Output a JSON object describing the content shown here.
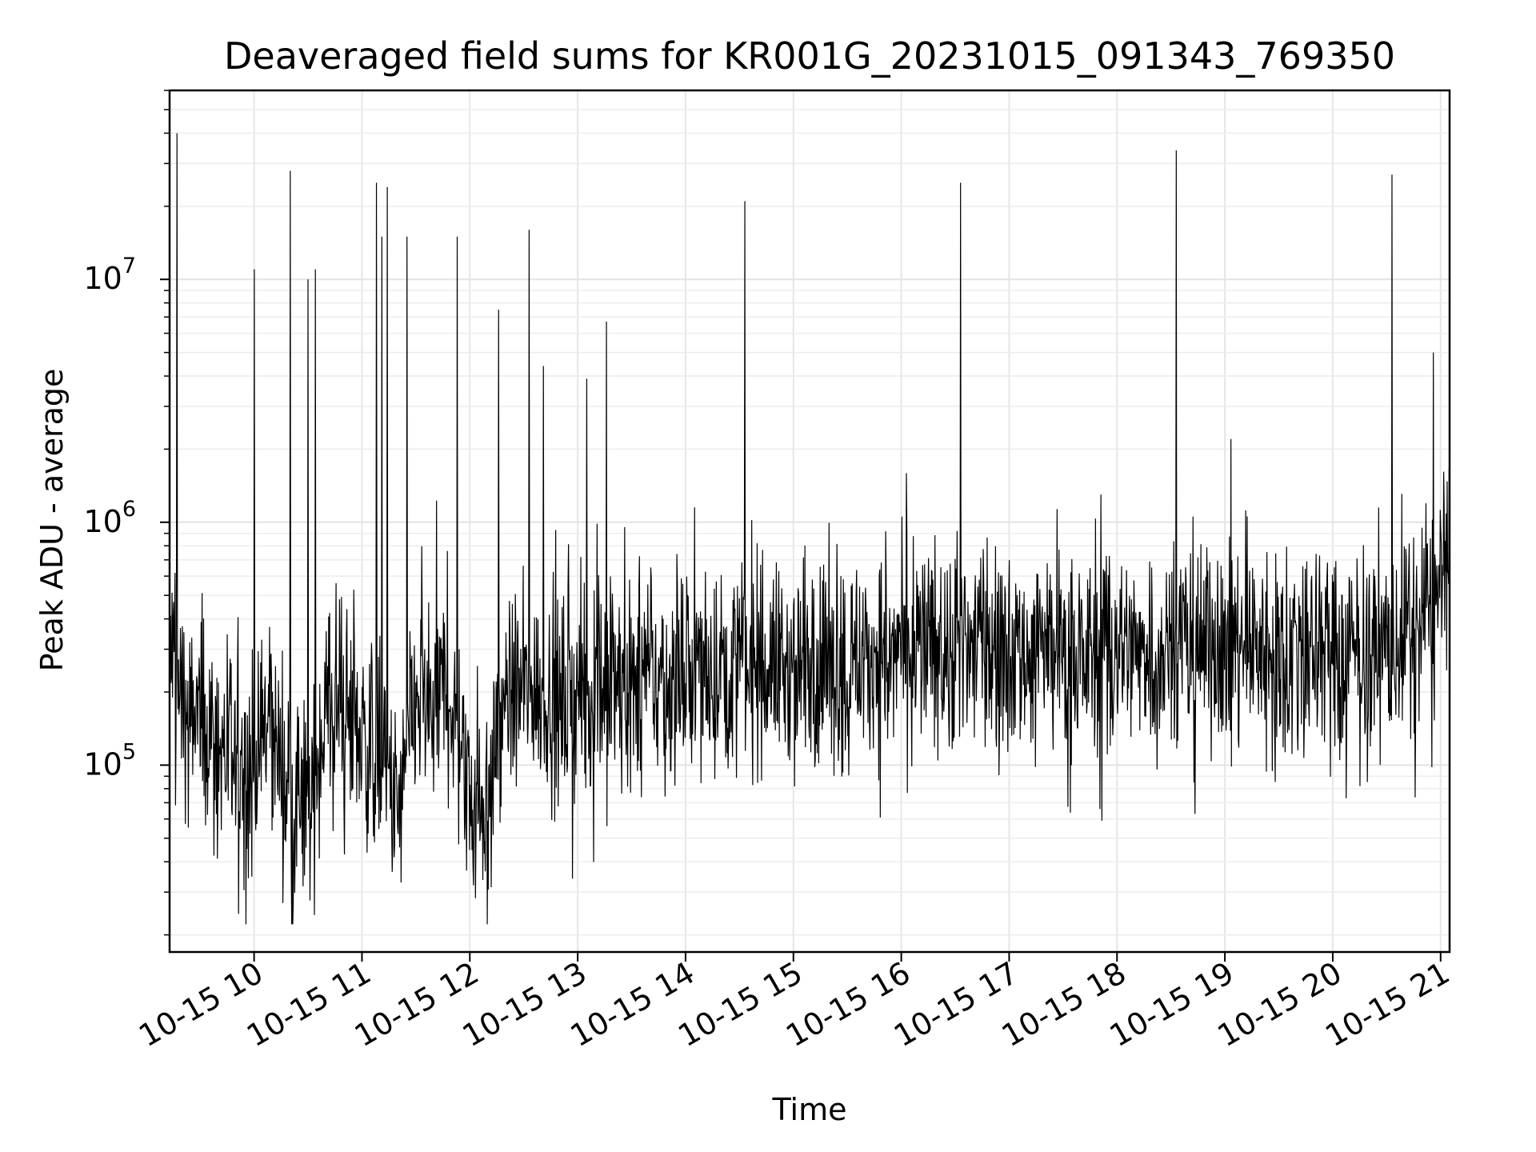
{
  "chart_data": {
    "type": "line",
    "title": "Deaveraged field sums for KR001G_20231015_091343_769350",
    "xlabel": "Time",
    "ylabel": "Peak ADU - average",
    "yscale": "log",
    "ylim": [
      17000,
      60000000
    ],
    "xlim": [
      "2023-10-15 09:13",
      "2023-10-15 21:05"
    ],
    "grid": true,
    "line_color": "#000000",
    "x_ticks": [
      {
        "value": "2023-10-15 10:00",
        "label": "10-15 10"
      },
      {
        "value": "2023-10-15 11:00",
        "label": "10-15 11"
      },
      {
        "value": "2023-10-15 12:00",
        "label": "10-15 12"
      },
      {
        "value": "2023-10-15 13:00",
        "label": "10-15 13"
      },
      {
        "value": "2023-10-15 14:00",
        "label": "10-15 14"
      },
      {
        "value": "2023-10-15 15:00",
        "label": "10-15 15"
      },
      {
        "value": "2023-10-15 16:00",
        "label": "10-15 16"
      },
      {
        "value": "2023-10-15 17:00",
        "label": "10-15 17"
      },
      {
        "value": "2023-10-15 18:00",
        "label": "10-15 18"
      },
      {
        "value": "2023-10-15 19:00",
        "label": "10-15 19"
      },
      {
        "value": "2023-10-15 20:00",
        "label": "10-15 20"
      },
      {
        "value": "2023-10-15 21:00",
        "label": "10-15 21"
      }
    ],
    "y_ticks": [
      {
        "value": 100000,
        "base": "10",
        "exp": "5"
      },
      {
        "value": 1000000,
        "base": "10",
        "exp": "6"
      },
      {
        "value": 10000000,
        "base": "10",
        "exp": "7"
      }
    ],
    "series": [
      {
        "x": [
          "2023-10-15 09:13",
          "2023-10-15 09:20",
          "2023-10-15 09:30",
          "2023-10-15 09:40",
          "2023-10-15 09:50",
          "2023-10-15 10:00",
          "2023-10-15 10:10",
          "2023-10-15 10:20",
          "2023-10-15 10:30",
          "2023-10-15 10:40",
          "2023-10-15 10:50",
          "2023-10-15 11:00",
          "2023-10-15 11:10",
          "2023-10-15 11:20",
          "2023-10-15 11:30",
          "2023-10-15 11:40",
          "2023-10-15 11:50",
          "2023-10-15 12:00",
          "2023-10-15 12:10",
          "2023-10-15 12:20",
          "2023-10-15 12:30",
          "2023-10-15 12:40",
          "2023-10-15 12:50",
          "2023-10-15 13:00",
          "2023-10-15 13:20",
          "2023-10-15 13:40",
          "2023-10-15 14:00",
          "2023-10-15 14:20",
          "2023-10-15 14:40",
          "2023-10-15 15:00",
          "2023-10-15 15:20",
          "2023-10-15 15:40",
          "2023-10-15 16:00",
          "2023-10-15 16:20",
          "2023-10-15 16:40",
          "2023-10-15 17:00",
          "2023-10-15 17:20",
          "2023-10-15 17:40",
          "2023-10-15 18:00",
          "2023-10-15 18:20",
          "2023-10-15 18:40",
          "2023-10-15 19:00",
          "2023-10-15 19:20",
          "2023-10-15 19:40",
          "2023-10-15 20:00",
          "2023-10-15 20:20",
          "2023-10-15 20:40",
          "2023-10-15 21:00",
          "2023-10-15 21:05"
        ],
        "y": [
          300000,
          180000,
          150000,
          130000,
          90000,
          100000,
          150000,
          70000,
          60000,
          160000,
          170000,
          130000,
          110000,
          60000,
          180000,
          190000,
          200000,
          70000,
          70000,
          190000,
          200000,
          200000,
          190000,
          200000,
          210000,
          220000,
          240000,
          250000,
          260000,
          250000,
          270000,
          280000,
          290000,
          300000,
          310000,
          300000,
          290000,
          280000,
          300000,
          310000,
          320000,
          310000,
          300000,
          300000,
          290000,
          300000,
          320000,
          480000,
          600000
        ]
      }
    ],
    "spikes": [
      {
        "x": "2023-10-15 09:17",
        "y": 40000000
      },
      {
        "x": "2023-10-15 10:00",
        "y": 11000000
      },
      {
        "x": "2023-10-15 10:20",
        "y": 28000000
      },
      {
        "x": "2023-10-15 10:30",
        "y": 10000000
      },
      {
        "x": "2023-10-15 10:34",
        "y": 11000000
      },
      {
        "x": "2023-10-15 11:08",
        "y": 25000000
      },
      {
        "x": "2023-10-15 11:11",
        "y": 15000000
      },
      {
        "x": "2023-10-15 11:14",
        "y": 24000000
      },
      {
        "x": "2023-10-15 11:25",
        "y": 15000000
      },
      {
        "x": "2023-10-15 11:53",
        "y": 15000000
      },
      {
        "x": "2023-10-15 12:16",
        "y": 7500000
      },
      {
        "x": "2023-10-15 12:33",
        "y": 16000000
      },
      {
        "x": "2023-10-15 12:41",
        "y": 4400000
      },
      {
        "x": "2023-10-15 13:05",
        "y": 3900000
      },
      {
        "x": "2023-10-15 13:16",
        "y": 6700000
      },
      {
        "x": "2023-10-15 14:33",
        "y": 21000000
      },
      {
        "x": "2023-10-15 16:33",
        "y": 25000000
      },
      {
        "x": "2023-10-15 18:33",
        "y": 34000000
      },
      {
        "x": "2023-10-15 20:33",
        "y": 27000000
      },
      {
        "x": "2023-10-15 20:56",
        "y": 5000000
      }
    ]
  }
}
